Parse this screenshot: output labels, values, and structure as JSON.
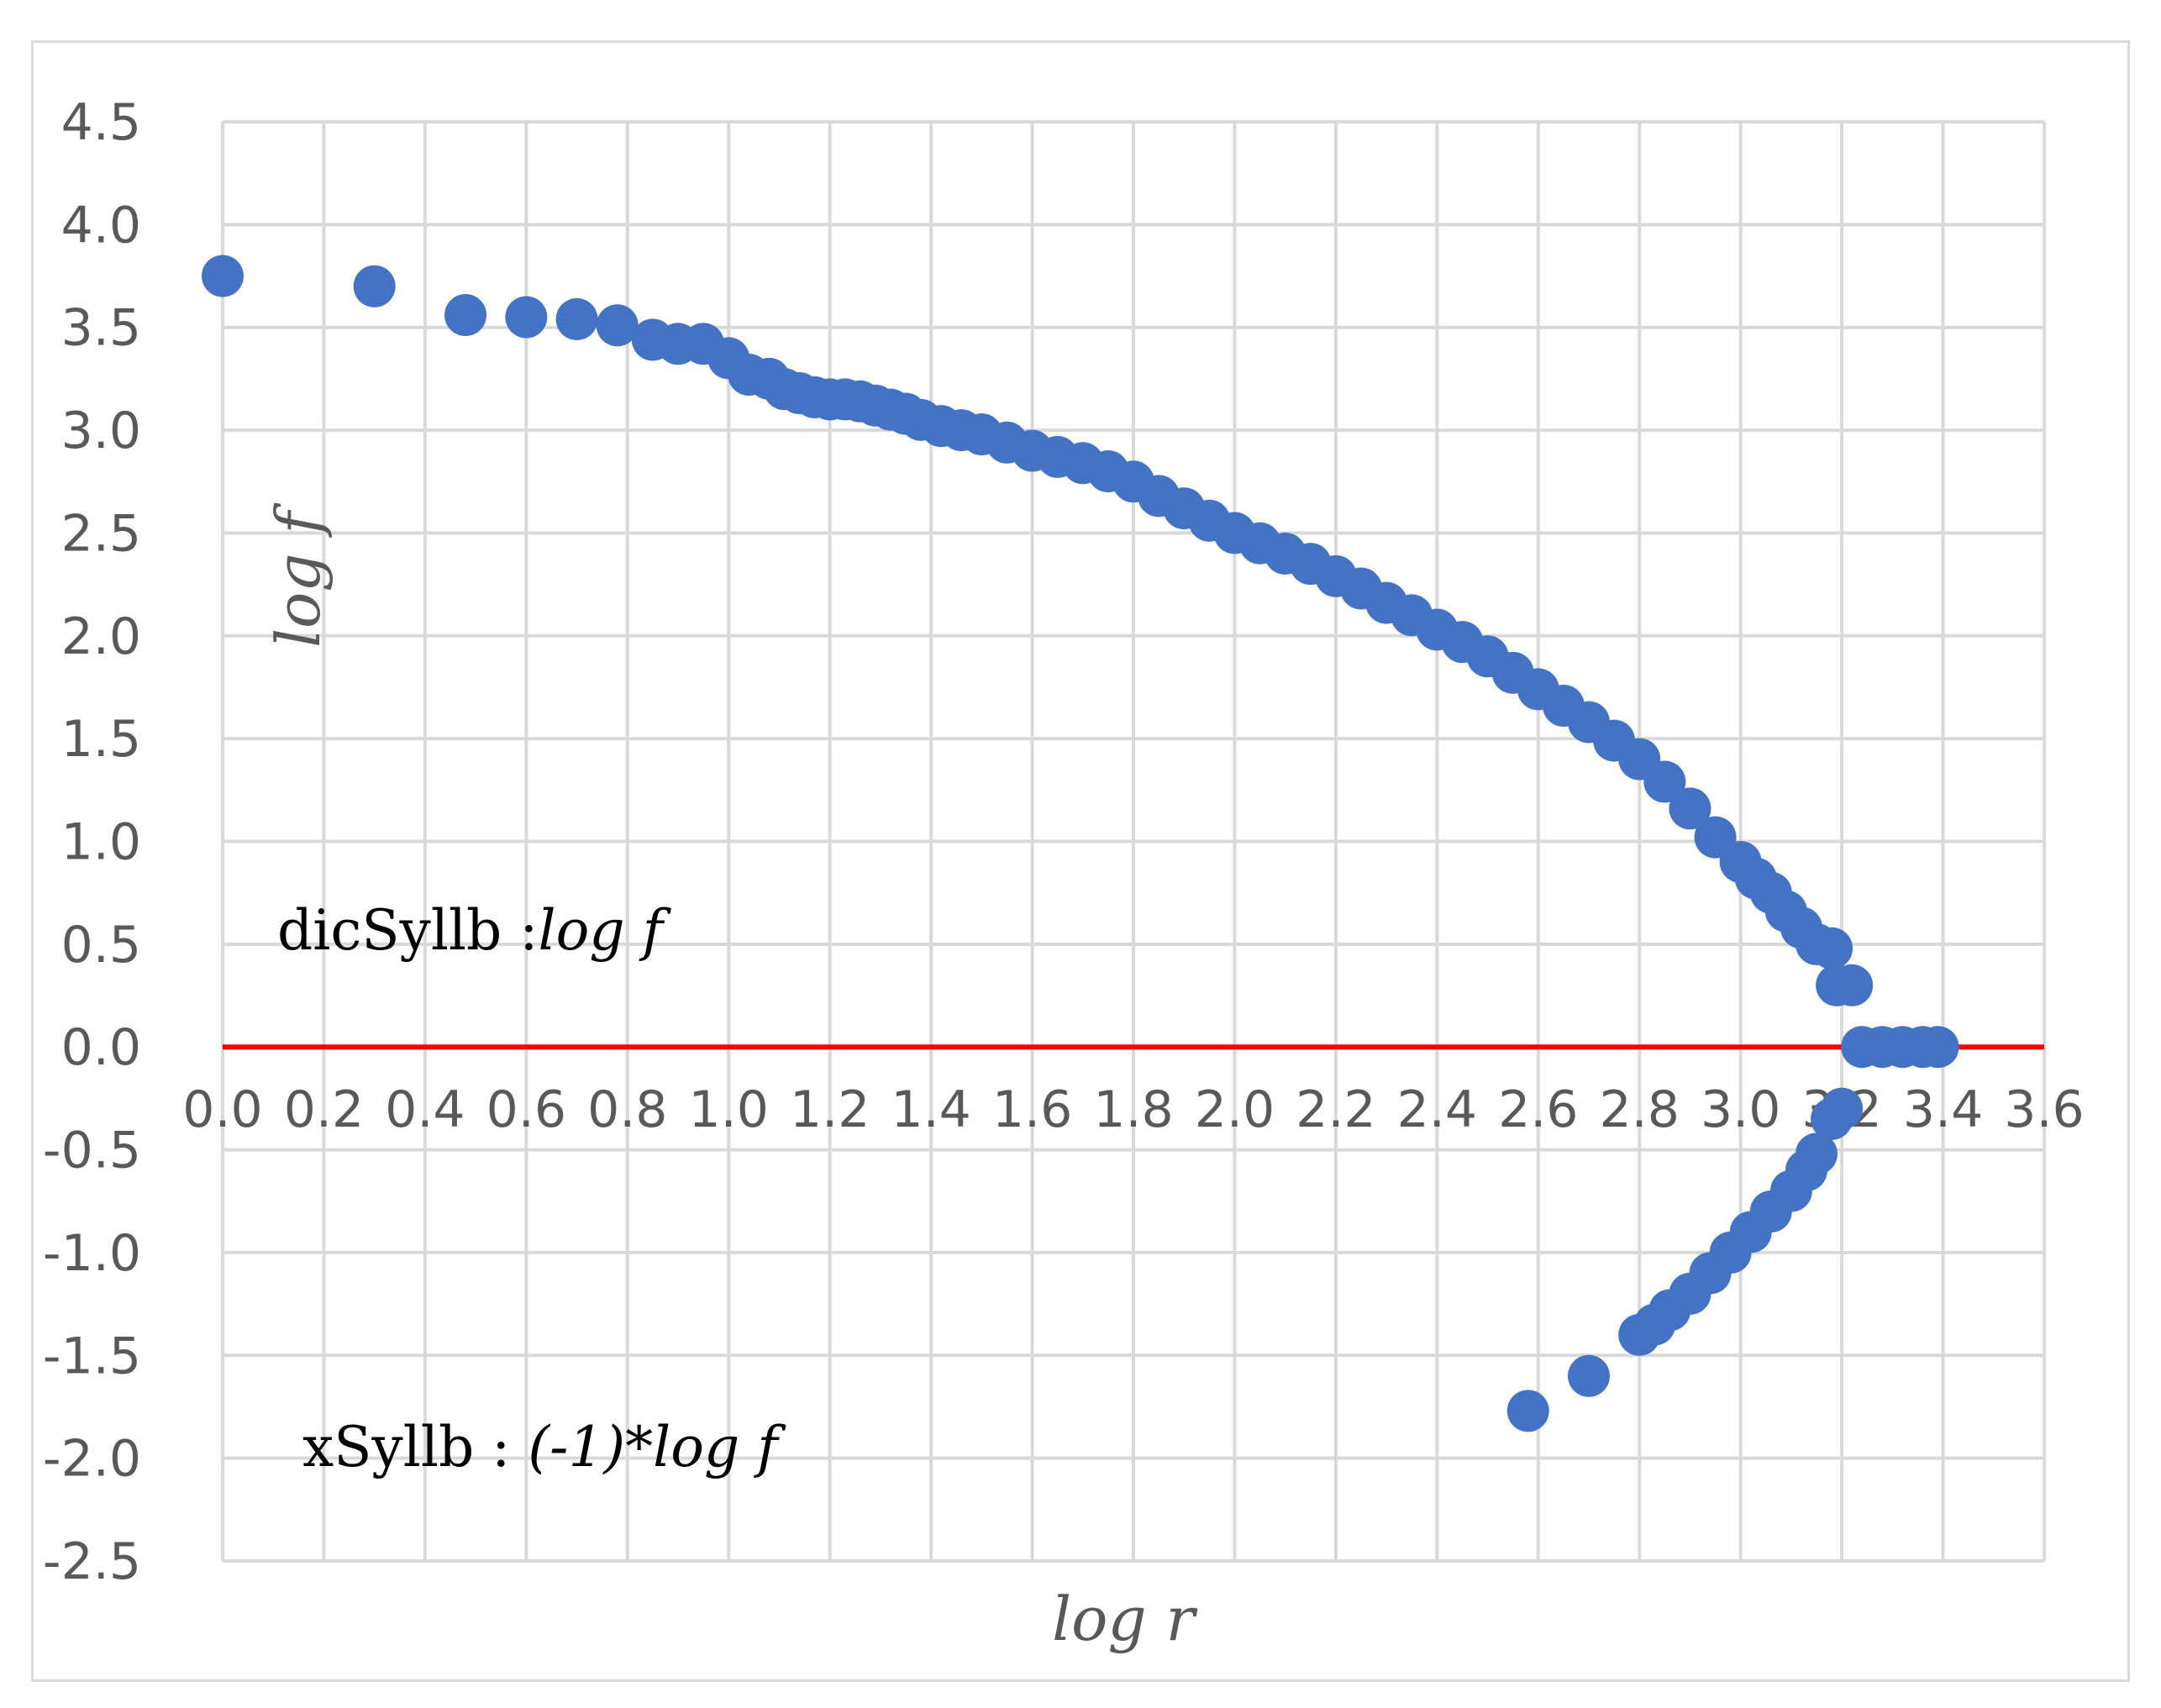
{
  "chart_data": {
    "type": "scatter",
    "title": "",
    "xlabel": "log r",
    "ylabel": "log f",
    "xlim": [
      0,
      3.6
    ],
    "ylim": [
      -2.5,
      4.5
    ],
    "x_ticks": [
      "0.0",
      "0.2",
      "0.4",
      "0.6",
      "0.8",
      "1.0",
      "1.2",
      "1.4",
      "1.6",
      "1.8",
      "2.0",
      "2.2",
      "2.4",
      "2.6",
      "2.8",
      "3.0",
      "3.2",
      "3.4",
      "3.6"
    ],
    "y_ticks": [
      "4.5",
      "4.0",
      "3.5",
      "3.0",
      "2.5",
      "2.0",
      "1.5",
      "1.0",
      "0.5",
      "0.0",
      "-0.5",
      "-1.0",
      "-1.5",
      "-2.0",
      "-2.5"
    ],
    "grid": true,
    "marker_color": "#4472c4",
    "zero_line_color": "#ff0000",
    "annotations": [
      {
        "name": "dicsyllb",
        "plain": "dicSyllb :",
        "italic": "log f"
      },
      {
        "name": "xsyllb",
        "plain": "xSyllb : ",
        "italic": "(-1)*log f"
      }
    ],
    "series": [
      {
        "name": "dicSyllb",
        "points": [
          [
            0.0,
            3.75
          ],
          [
            0.3,
            3.7
          ],
          [
            0.48,
            3.56
          ],
          [
            0.6,
            3.55
          ],
          [
            0.7,
            3.54
          ],
          [
            0.78,
            3.51
          ],
          [
            0.85,
            3.44
          ],
          [
            0.9,
            3.42
          ],
          [
            0.95,
            3.42
          ],
          [
            1.0,
            3.35
          ],
          [
            1.04,
            3.27
          ],
          [
            1.08,
            3.25
          ],
          [
            1.11,
            3.2
          ],
          [
            1.14,
            3.18
          ],
          [
            1.17,
            3.16
          ],
          [
            1.2,
            3.15
          ],
          [
            1.23,
            3.15
          ],
          [
            1.26,
            3.14
          ],
          [
            1.29,
            3.12
          ],
          [
            1.32,
            3.1
          ],
          [
            1.35,
            3.08
          ],
          [
            1.38,
            3.05
          ],
          [
            1.42,
            3.02
          ],
          [
            1.46,
            3.0
          ],
          [
            1.5,
            2.98
          ],
          [
            1.55,
            2.94
          ],
          [
            1.6,
            2.9
          ],
          [
            1.65,
            2.87
          ],
          [
            1.7,
            2.84
          ],
          [
            1.75,
            2.8
          ],
          [
            1.8,
            2.75
          ],
          [
            1.85,
            2.68
          ],
          [
            1.9,
            2.62
          ],
          [
            1.95,
            2.56
          ],
          [
            2.0,
            2.5
          ],
          [
            2.05,
            2.45
          ],
          [
            2.1,
            2.4
          ],
          [
            2.15,
            2.35
          ],
          [
            2.2,
            2.29
          ],
          [
            2.25,
            2.23
          ],
          [
            2.3,
            2.16
          ],
          [
            2.35,
            2.1
          ],
          [
            2.4,
            2.03
          ],
          [
            2.45,
            1.97
          ],
          [
            2.5,
            1.9
          ],
          [
            2.55,
            1.82
          ],
          [
            2.6,
            1.74
          ],
          [
            2.65,
            1.66
          ],
          [
            2.7,
            1.58
          ],
          [
            2.75,
            1.49
          ],
          [
            2.8,
            1.4
          ],
          [
            2.85,
            1.29
          ],
          [
            2.9,
            1.16
          ],
          [
            2.95,
            1.02
          ],
          [
            3.0,
            0.9
          ],
          [
            3.03,
            0.82
          ],
          [
            3.06,
            0.75
          ],
          [
            3.09,
            0.66
          ],
          [
            3.12,
            0.58
          ],
          [
            3.15,
            0.5
          ],
          [
            3.18,
            0.48
          ],
          [
            3.19,
            0.3
          ],
          [
            3.22,
            0.3
          ],
          [
            3.24,
            0.0
          ],
          [
            3.28,
            0.0
          ],
          [
            3.32,
            0.0
          ],
          [
            3.36,
            0.0
          ],
          [
            3.39,
            0.0
          ]
        ]
      },
      {
        "name": "xSyllb",
        "points": [
          [
            2.58,
            -1.77
          ],
          [
            2.7,
            -1.6
          ],
          [
            2.8,
            -1.4
          ],
          [
            2.83,
            -1.35
          ],
          [
            2.86,
            -1.28
          ],
          [
            2.9,
            -1.2
          ],
          [
            2.94,
            -1.1
          ],
          [
            2.98,
            -1.0
          ],
          [
            3.02,
            -0.9
          ],
          [
            3.06,
            -0.8
          ],
          [
            3.1,
            -0.7
          ],
          [
            3.13,
            -0.6
          ],
          [
            3.15,
            -0.52
          ],
          [
            3.18,
            -0.35
          ],
          [
            3.2,
            -0.3
          ]
        ]
      }
    ]
  }
}
